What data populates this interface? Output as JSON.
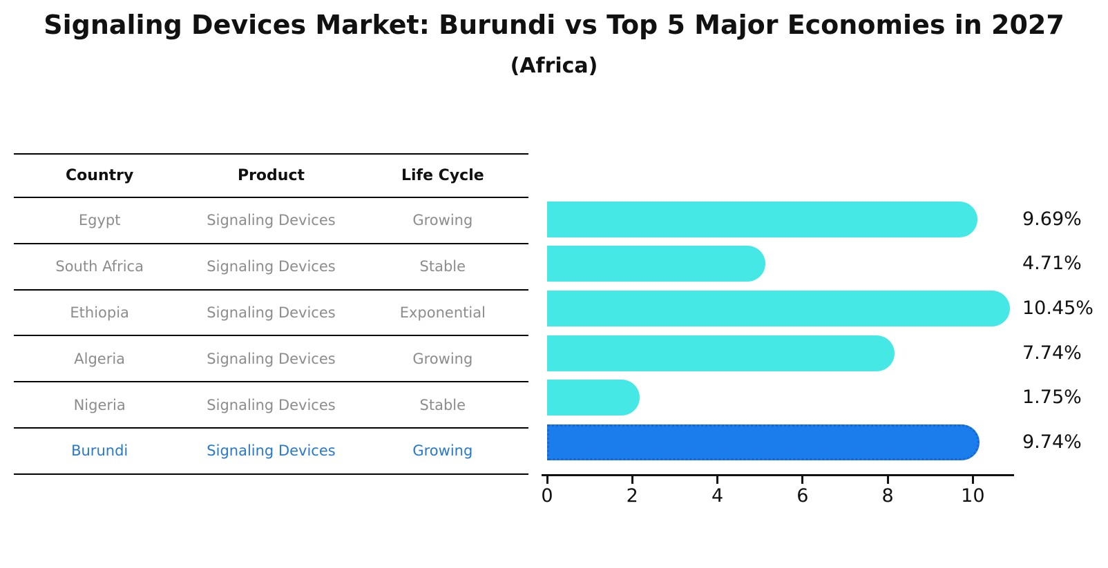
{
  "figure": {
    "title": "Signaling Devices Market: Burundi vs Top 5 Major Economies in 2027",
    "subtitle": "(Africa)"
  },
  "table": {
    "headers": [
      "Country",
      "Product",
      "Life Cycle"
    ],
    "rows": [
      {
        "country": "Egypt",
        "product": "Signaling Devices",
        "life_cycle": "Growing",
        "highlight": false
      },
      {
        "country": "South Africa",
        "product": "Signaling Devices",
        "life_cycle": "Stable",
        "highlight": false
      },
      {
        "country": "Ethiopia",
        "product": "Signaling Devices",
        "life_cycle": "Exponential",
        "highlight": false
      },
      {
        "country": "Algeria",
        "product": "Signaling Devices",
        "life_cycle": "Growing",
        "highlight": false
      },
      {
        "country": "Nigeria",
        "product": "Signaling Devices",
        "life_cycle": "Stable",
        "highlight": false
      },
      {
        "country": "Burundi",
        "product": "Signaling Devices",
        "life_cycle": "Growing",
        "highlight": true
      }
    ]
  },
  "chart_data": {
    "type": "bar",
    "orientation": "horizontal",
    "title": "Signaling Devices Market: Burundi vs Top 5 Major Economies in 2027",
    "subtitle": "(Africa)",
    "categories": [
      "Egypt",
      "South Africa",
      "Ethiopia",
      "Algeria",
      "Nigeria",
      "Burundi"
    ],
    "values": [
      9.69,
      4.71,
      10.45,
      7.74,
      1.75,
      9.74
    ],
    "value_labels": [
      "9.69%",
      "4.71%",
      "10.45%",
      "7.74%",
      "1.75%",
      "9.74%"
    ],
    "x_ticks": [
      "0",
      "2",
      "4",
      "6",
      "8",
      "10"
    ],
    "x_tick_values": [
      0,
      2,
      4,
      6,
      8,
      10
    ],
    "xlim": [
      0,
      11
    ],
    "grid": false,
    "legend": false,
    "bar_color": "#46E8E6",
    "highlight_index": 5,
    "highlight_color": "#1B7CEC",
    "highlight_border_style": "dotted",
    "highlight_border_color": "#1666D6",
    "highlight_text_color": "#2878CD"
  },
  "colors": {
    "background": "#FFFFFF",
    "text": "#111111",
    "muted_text": "#8C8C8C",
    "table_line": "#000000"
  }
}
